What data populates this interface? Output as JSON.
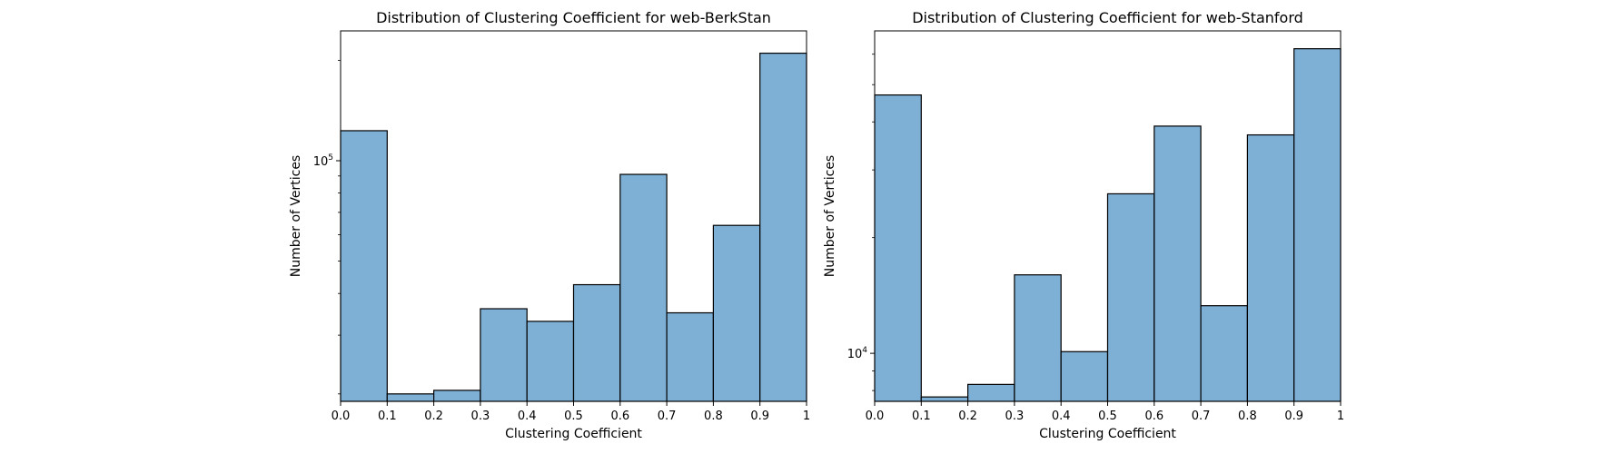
{
  "chart_data": [
    {
      "type": "bar",
      "title": "Distribution of Clustering Coefficient for web-BerkStan",
      "xlabel": "Clustering Coefficient",
      "ylabel": "Number of Vertices",
      "yscale": "log",
      "xlim": [
        0,
        1
      ],
      "ylim": [
        19000,
        245000
      ],
      "bin_edges": [
        0.0,
        0.1,
        0.2,
        0.3,
        0.4,
        0.5,
        0.6,
        0.7,
        0.8,
        0.9,
        1.0
      ],
      "values": [
        123000,
        20000,
        20500,
        36000,
        33000,
        42500,
        91000,
        35000,
        64000,
        210000
      ],
      "xticks": [
        0.0,
        0.1,
        0.2,
        0.3,
        0.4,
        0.5,
        0.6,
        0.7,
        0.8,
        0.9,
        1.0
      ],
      "xtick_labels": [
        "0.0",
        "0.1",
        "0.2",
        "0.3",
        "0.4",
        "0.5",
        "0.6",
        "0.7",
        "0.8",
        "0.9",
        "1"
      ],
      "yticks": [
        {
          "value": 100000,
          "base": "10",
          "exp": "5"
        }
      ],
      "grid": false,
      "bar_color": "#7eafd5",
      "edge_color": "#000000"
    },
    {
      "type": "bar",
      "title": "Distribution of Clustering Coefficient for web-Stanford",
      "xlabel": "Clustering Coefficient",
      "ylabel": "Number of Vertices",
      "yscale": "log",
      "xlim": [
        0,
        1
      ],
      "ylim": [
        7500,
        69000
      ],
      "bin_edges": [
        0.0,
        0.1,
        0.2,
        0.3,
        0.4,
        0.5,
        0.6,
        0.7,
        0.8,
        0.9,
        1.0
      ],
      "values": [
        47000,
        7700,
        8300,
        16000,
        10100,
        26000,
        39000,
        13300,
        37000,
        62000
      ],
      "xticks": [
        0.0,
        0.1,
        0.2,
        0.3,
        0.4,
        0.5,
        0.6,
        0.7,
        0.8,
        0.9,
        1.0
      ],
      "xtick_labels": [
        "0.0",
        "0.1",
        "0.2",
        "0.3",
        "0.4",
        "0.5",
        "0.6",
        "0.7",
        "0.8",
        "0.9",
        "1"
      ],
      "yticks": [
        {
          "value": 10000,
          "base": "10",
          "exp": "4"
        }
      ],
      "grid": false,
      "bar_color": "#7eafd5",
      "edge_color": "#000000"
    }
  ]
}
